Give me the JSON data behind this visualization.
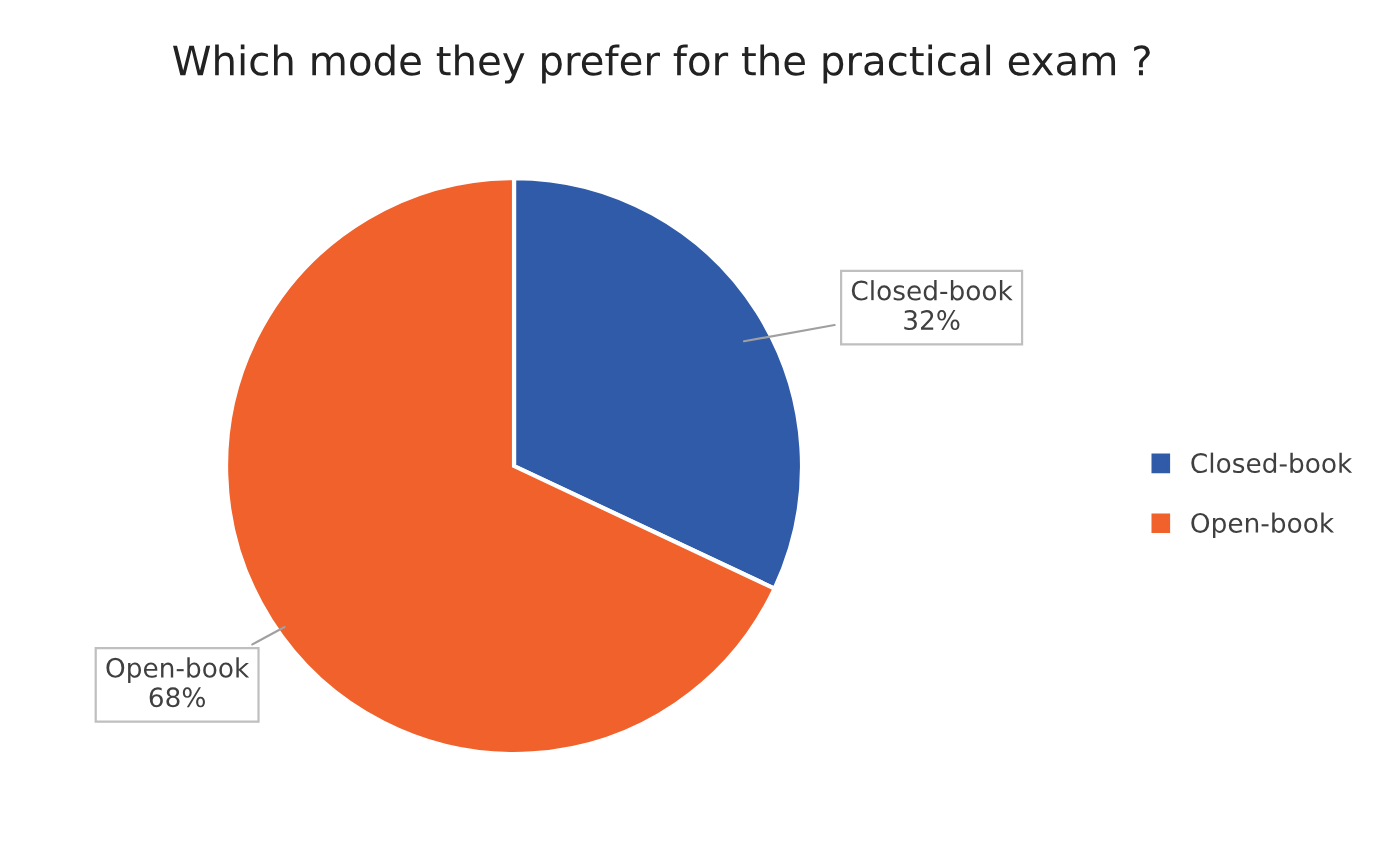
{
  "chart_data": {
    "type": "pie",
    "title": "Which mode they prefer for the practical exam ?",
    "categories": [
      "Closed-book",
      "Open-book"
    ],
    "values": [
      32,
      68
    ],
    "value_labels": [
      "32%",
      "68%"
    ],
    "colors": [
      "#2f5ba8",
      "#f0612b"
    ],
    "legend": "right"
  }
}
